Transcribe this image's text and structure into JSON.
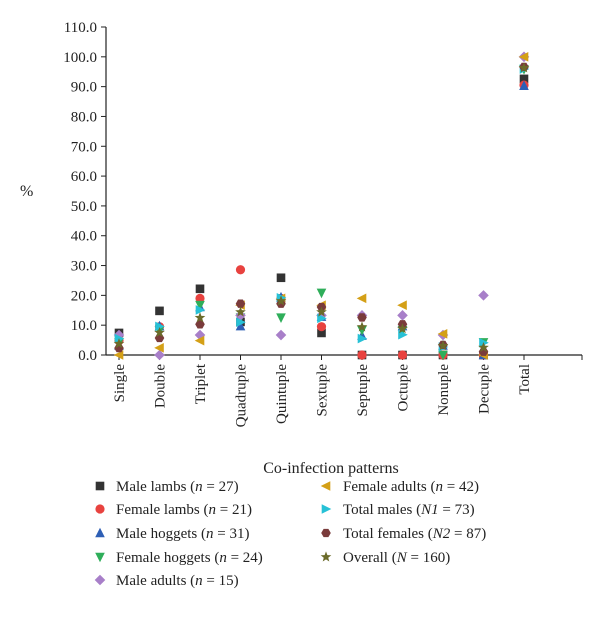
{
  "chart_data": {
    "type": "scatter",
    "title": "",
    "xlabel": "Co-infection patterns",
    "ylabel": "%",
    "categories": [
      "Single",
      "Double",
      "Triplet",
      "Quadruple",
      "Quintuple",
      "Sextuple",
      "Septuple",
      "Octuple",
      "Nonuple",
      "Decuple",
      "Total"
    ],
    "y_ticks": [
      "0.0",
      "10.0",
      "20.0",
      "30.0",
      "40.0",
      "50.0",
      "60.0",
      "70.0",
      "80.0",
      "90.0",
      "100.0",
      "110.0"
    ],
    "ylim": [
      0,
      110
    ],
    "grid": false,
    "legend_position": "bottom",
    "series": [
      {
        "name": "Male lambs (n = 27)",
        "name_parts": [
          "Male lambs (",
          "n",
          " = 27)"
        ],
        "marker": "square",
        "color": "#333333",
        "values": [
          7.4,
          14.8,
          22.2,
          11.1,
          25.9,
          7.4,
          0,
          0,
          0,
          0,
          92.6
        ]
      },
      {
        "name": "Female lambs (n = 21)",
        "name_parts": [
          "Female lambs (",
          "n",
          " = 21)"
        ],
        "marker": "circle",
        "color": "#e8423f",
        "values": [
          4.8,
          9.5,
          19.0,
          28.6,
          19.0,
          9.5,
          0,
          0,
          0,
          0,
          90.5
        ]
      },
      {
        "name": "Male hoggets (n = 31)",
        "name_parts": [
          "Male hoggets (",
          "n",
          " = 31)"
        ],
        "marker": "triangle-up",
        "color": "#2e5fb5",
        "values": [
          3.2,
          9.7,
          16.1,
          9.7,
          19.4,
          12.9,
          6.5,
          9.7,
          3.2,
          0,
          90.3
        ]
      },
      {
        "name": "Female hoggets (n = 24)",
        "name_parts": [
          "Female hoggets (",
          "n",
          " = 24)"
        ],
        "marker": "triangle-down",
        "color": "#2fae5a",
        "values": [
          4.2,
          8.3,
          16.7,
          12.5,
          12.5,
          20.8,
          8.3,
          8.3,
          0,
          4.2,
          95.8
        ]
      },
      {
        "name": "Male adults (n = 15)",
        "name_parts": [
          "Male adults (",
          "n",
          " = 15)"
        ],
        "marker": "diamond",
        "color": "#a87fc9",
        "values": [
          6.7,
          0,
          6.7,
          13.3,
          6.7,
          13.3,
          13.3,
          13.3,
          6.7,
          20.0,
          100.0
        ]
      },
      {
        "name": "Female adults (n = 42)",
        "name_parts": [
          "Female adults (",
          "n",
          " = 42)"
        ],
        "marker": "triangle-left",
        "color": "#d4a017",
        "values": [
          0,
          2.4,
          4.8,
          16.7,
          19.0,
          16.7,
          19.0,
          16.7,
          7.1,
          0,
          100.0
        ]
      },
      {
        "name": "Total males (N1 = 73)",
        "name_parts": [
          "Total males (",
          "N1",
          " = 73)"
        ],
        "marker": "triangle-right",
        "color": "#27c1d6",
        "values": [
          5.5,
          9.6,
          15.1,
          11.0,
          19.2,
          12.3,
          5.5,
          6.8,
          2.7,
          4.1,
          95.9
        ]
      },
      {
        "name": "Total females (N2 = 87)",
        "name_parts": [
          "Total females (",
          "N2",
          " = 87)"
        ],
        "marker": "hexagon",
        "color": "#7a3b3b",
        "values": [
          2.3,
          5.7,
          10.3,
          17.2,
          17.2,
          16.1,
          12.6,
          10.3,
          3.4,
          1.1,
          96.6
        ]
      },
      {
        "name": "Overall (N = 160)",
        "name_parts": [
          "Overall (",
          "N",
          " = 160)"
        ],
        "marker": "star",
        "color": "#6b6b2a",
        "values": [
          3.8,
          7.5,
          12.5,
          14.4,
          18.1,
          14.4,
          9.4,
          8.8,
          3.1,
          2.5,
          96.3
        ]
      }
    ]
  }
}
